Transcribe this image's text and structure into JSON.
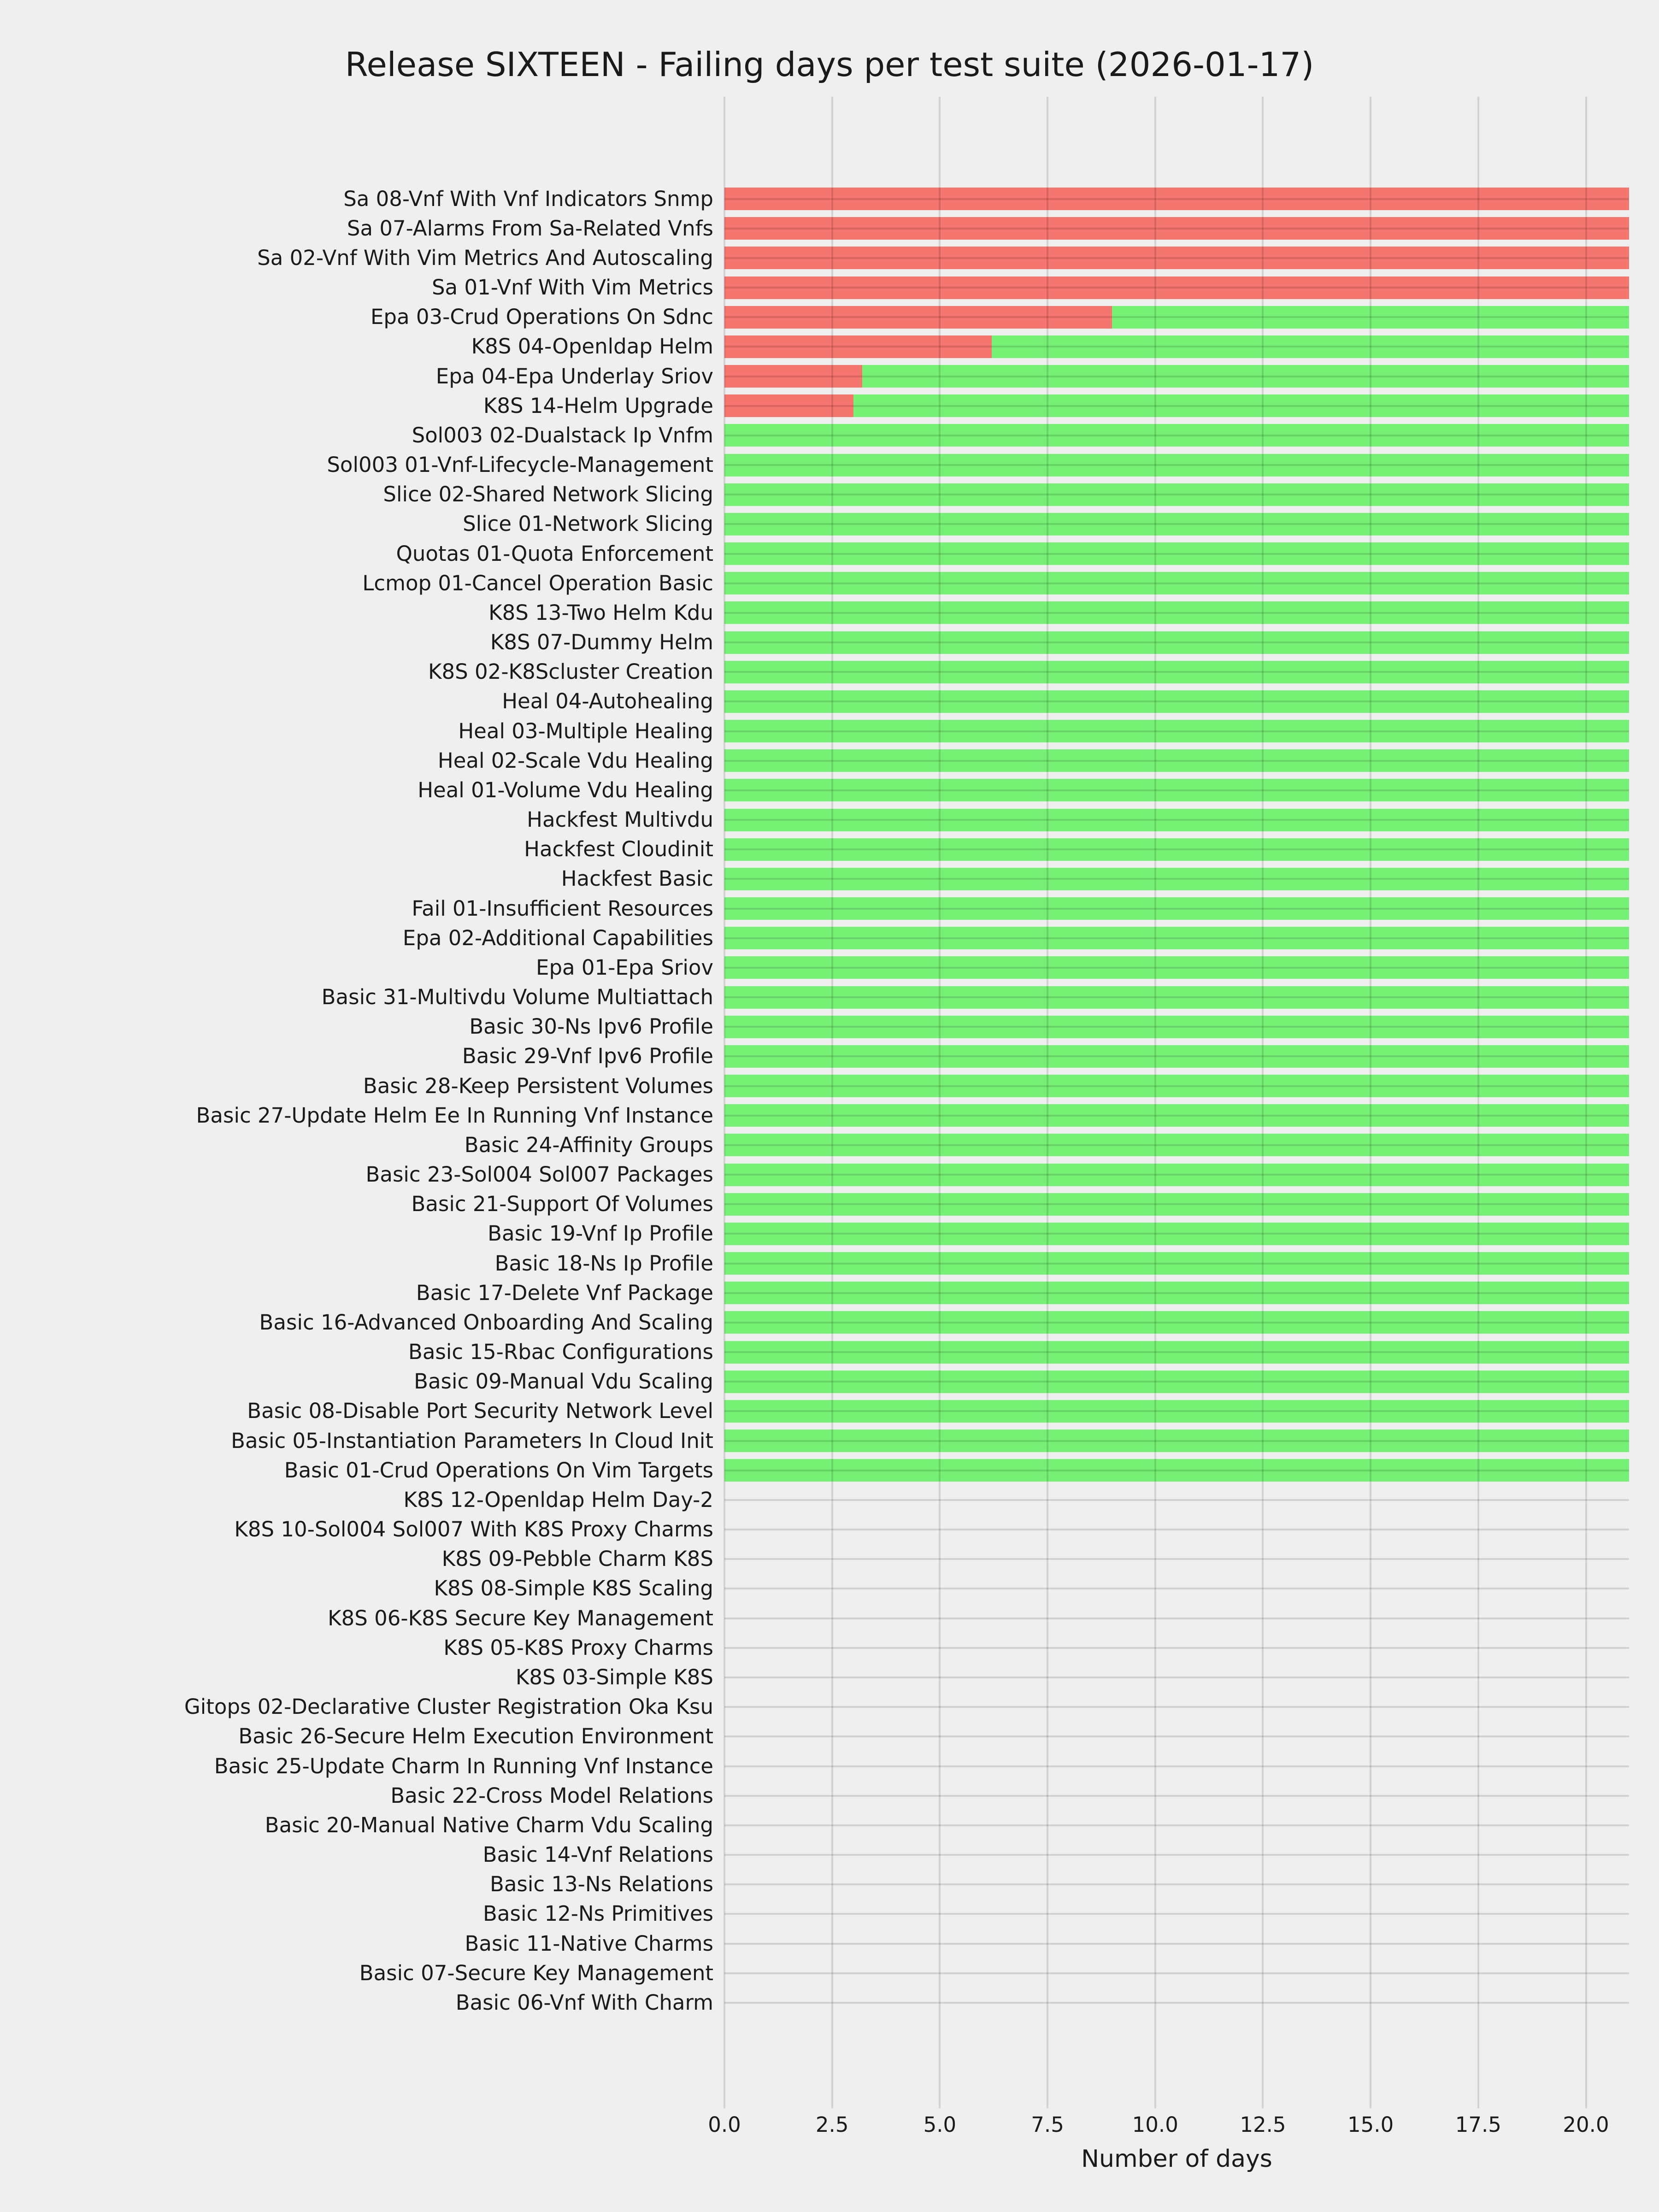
{
  "page": {
    "background": "#efefef",
    "text_color": "#1a1a1a",
    "grid_color": "rgba(0,0,0,0.12)"
  },
  "chart_data": {
    "type": "bar",
    "orientation": "horizontal",
    "stacked": true,
    "title": "Release SIXTEEN - Failing days per test suite (2026-01-17)",
    "xlabel": "Number of days",
    "xlim": [
      0,
      21
    ],
    "grid": "both",
    "legend": "none",
    "x_ticks": [
      {
        "value": 0,
        "label": "0.0"
      },
      {
        "value": 2.5,
        "label": "2.5"
      },
      {
        "value": 5,
        "label": "5.0"
      },
      {
        "value": 7.5,
        "label": "7.5"
      },
      {
        "value": 10,
        "label": "10.0"
      },
      {
        "value": 12.5,
        "label": "12.5"
      },
      {
        "value": 15,
        "label": "15.0"
      },
      {
        "value": 17.5,
        "label": "17.5"
      },
      {
        "value": 20,
        "label": "20.0"
      }
    ],
    "series": [
      {
        "name": "failing-days",
        "color": "#f5756f"
      },
      {
        "name": "passing-days",
        "color": "#76f175"
      }
    ],
    "suites": [
      {
        "label": "Sa 08-Vnf With Vnf Indicators Snmp",
        "failing": 21,
        "passing": 0
      },
      {
        "label": "Sa 07-Alarms From Sa-Related Vnfs",
        "failing": 21,
        "passing": 0
      },
      {
        "label": "Sa 02-Vnf With Vim Metrics And Autoscaling",
        "failing": 21,
        "passing": 0
      },
      {
        "label": "Sa 01-Vnf With Vim Metrics",
        "failing": 21,
        "passing": 0
      },
      {
        "label": "Epa 03-Crud Operations On Sdnc",
        "failing": 9,
        "passing": 12
      },
      {
        "label": "K8S 04-Openldap Helm",
        "failing": 6.2,
        "passing": 14.8
      },
      {
        "label": "Epa 04-Epa Underlay Sriov",
        "failing": 3.2,
        "passing": 17.8
      },
      {
        "label": "K8S 14-Helm Upgrade",
        "failing": 3,
        "passing": 18
      },
      {
        "label": "Sol003 02-Dualstack Ip Vnfm",
        "failing": 0,
        "passing": 21
      },
      {
        "label": "Sol003 01-Vnf-Lifecycle-Management",
        "failing": 0,
        "passing": 21
      },
      {
        "label": "Slice 02-Shared Network Slicing",
        "failing": 0,
        "passing": 21
      },
      {
        "label": "Slice 01-Network Slicing",
        "failing": 0,
        "passing": 21
      },
      {
        "label": "Quotas 01-Quota Enforcement",
        "failing": 0,
        "passing": 21
      },
      {
        "label": "Lcmop 01-Cancel Operation Basic",
        "failing": 0,
        "passing": 21
      },
      {
        "label": "K8S 13-Two Helm Kdu",
        "failing": 0,
        "passing": 21
      },
      {
        "label": "K8S 07-Dummy Helm",
        "failing": 0,
        "passing": 21
      },
      {
        "label": "K8S 02-K8Scluster Creation",
        "failing": 0,
        "passing": 21
      },
      {
        "label": "Heal 04-Autohealing",
        "failing": 0,
        "passing": 21
      },
      {
        "label": "Heal 03-Multiple Healing",
        "failing": 0,
        "passing": 21
      },
      {
        "label": "Heal 02-Scale Vdu Healing",
        "failing": 0,
        "passing": 21
      },
      {
        "label": "Heal 01-Volume Vdu Healing",
        "failing": 0,
        "passing": 21
      },
      {
        "label": "Hackfest Multivdu",
        "failing": 0,
        "passing": 21
      },
      {
        "label": "Hackfest Cloudinit",
        "failing": 0,
        "passing": 21
      },
      {
        "label": "Hackfest Basic",
        "failing": 0,
        "passing": 21
      },
      {
        "label": "Fail 01-Insufficient Resources",
        "failing": 0,
        "passing": 21
      },
      {
        "label": "Epa 02-Additional Capabilities",
        "failing": 0,
        "passing": 21
      },
      {
        "label": "Epa 01-Epa Sriov",
        "failing": 0,
        "passing": 21
      },
      {
        "label": "Basic 31-Multivdu Volume Multiattach",
        "failing": 0,
        "passing": 21
      },
      {
        "label": "Basic 30-Ns Ipv6 Profile",
        "failing": 0,
        "passing": 21
      },
      {
        "label": "Basic 29-Vnf Ipv6 Profile",
        "failing": 0,
        "passing": 21
      },
      {
        "label": "Basic 28-Keep Persistent Volumes",
        "failing": 0,
        "passing": 21
      },
      {
        "label": "Basic 27-Update Helm Ee In Running Vnf Instance",
        "failing": 0,
        "passing": 21
      },
      {
        "label": "Basic 24-Affinity Groups",
        "failing": 0,
        "passing": 21
      },
      {
        "label": "Basic 23-Sol004 Sol007 Packages",
        "failing": 0,
        "passing": 21
      },
      {
        "label": "Basic 21-Support Of Volumes",
        "failing": 0,
        "passing": 21
      },
      {
        "label": "Basic 19-Vnf Ip Profile",
        "failing": 0,
        "passing": 21
      },
      {
        "label": "Basic 18-Ns Ip Profile",
        "failing": 0,
        "passing": 21
      },
      {
        "label": "Basic 17-Delete Vnf Package",
        "failing": 0,
        "passing": 21
      },
      {
        "label": "Basic 16-Advanced Onboarding And Scaling",
        "failing": 0,
        "passing": 21
      },
      {
        "label": "Basic 15-Rbac Configurations",
        "failing": 0,
        "passing": 21
      },
      {
        "label": "Basic 09-Manual Vdu Scaling",
        "failing": 0,
        "passing": 21
      },
      {
        "label": "Basic 08-Disable Port Security Network Level",
        "failing": 0,
        "passing": 21
      },
      {
        "label": "Basic 05-Instantiation Parameters In Cloud Init",
        "failing": 0,
        "passing": 21
      },
      {
        "label": "Basic 01-Crud Operations On Vim Targets",
        "failing": 0,
        "passing": 21
      },
      {
        "label": "K8S 12-Openldap Helm Day-2",
        "failing": 0,
        "passing": 0
      },
      {
        "label": "K8S 10-Sol004 Sol007 With K8S Proxy Charms",
        "failing": 0,
        "passing": 0
      },
      {
        "label": "K8S 09-Pebble Charm K8S",
        "failing": 0,
        "passing": 0
      },
      {
        "label": "K8S 08-Simple K8S Scaling",
        "failing": 0,
        "passing": 0
      },
      {
        "label": "K8S 06-K8S Secure Key Management",
        "failing": 0,
        "passing": 0
      },
      {
        "label": "K8S 05-K8S Proxy Charms",
        "failing": 0,
        "passing": 0
      },
      {
        "label": "K8S 03-Simple K8S",
        "failing": 0,
        "passing": 0
      },
      {
        "label": "Gitops 02-Declarative Cluster Registration Oka Ksu",
        "failing": 0,
        "passing": 0
      },
      {
        "label": "Basic 26-Secure Helm Execution Environment",
        "failing": 0,
        "passing": 0
      },
      {
        "label": "Basic 25-Update Charm In Running Vnf Instance",
        "failing": 0,
        "passing": 0
      },
      {
        "label": "Basic 22-Cross Model Relations",
        "failing": 0,
        "passing": 0
      },
      {
        "label": "Basic 20-Manual Native Charm Vdu Scaling",
        "failing": 0,
        "passing": 0
      },
      {
        "label": "Basic 14-Vnf Relations",
        "failing": 0,
        "passing": 0
      },
      {
        "label": "Basic 13-Ns Relations",
        "failing": 0,
        "passing": 0
      },
      {
        "label": "Basic 12-Ns Primitives",
        "failing": 0,
        "passing": 0
      },
      {
        "label": "Basic 11-Native Charms",
        "failing": 0,
        "passing": 0
      },
      {
        "label": "Basic 07-Secure Key Management",
        "failing": 0,
        "passing": 0
      },
      {
        "label": "Basic 06-Vnf With Charm",
        "failing": 0,
        "passing": 0
      }
    ]
  }
}
